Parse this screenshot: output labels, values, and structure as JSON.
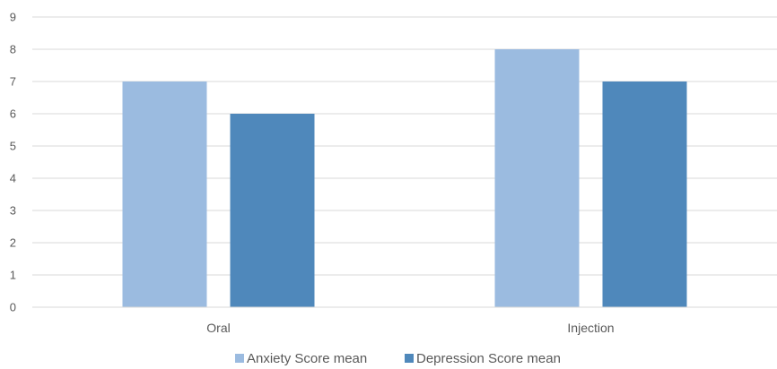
{
  "chart_data": {
    "type": "bar",
    "categories": [
      "Oral",
      "Injection"
    ],
    "series": [
      {
        "name": "Anxiety Score mean",
        "values": [
          7,
          8
        ],
        "color": "#9bbbe0"
      },
      {
        "name": "Depression Score mean",
        "values": [
          6,
          7
        ],
        "color": "#4f88bb"
      }
    ],
    "ylim": [
      0,
      9
    ],
    "yticks": [
      0,
      1,
      2,
      3,
      4,
      5,
      6,
      7,
      8,
      9
    ],
    "grid": true,
    "legend_position": "bottom"
  }
}
